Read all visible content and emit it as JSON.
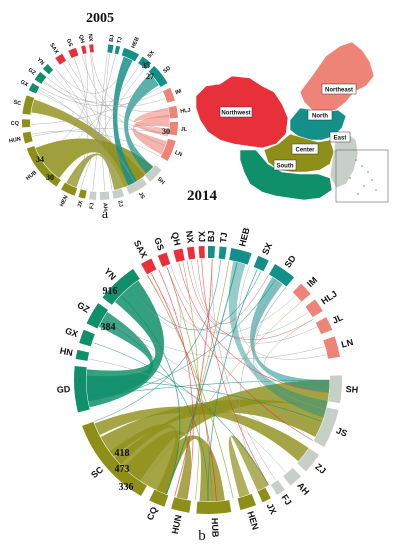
{
  "colors": {
    "northwest": "#e8303a",
    "north": "#13908a",
    "northeast": "#ee8378",
    "south": "#0f8f6a",
    "center": "#8e8f18",
    "east": "#c7cfc9",
    "link": "#9a9a9a"
  },
  "panel_a": {
    "title": "2005",
    "caption": "a",
    "nodes": [
      {
        "label": "BJ",
        "region": "north"
      },
      {
        "label": "TJ",
        "region": "north"
      },
      {
        "label": "HEB",
        "region": "north"
      },
      {
        "label": "SX",
        "region": "north"
      },
      {
        "label": "SD",
        "region": "north"
      },
      {
        "label": "IM",
        "region": "northeast"
      },
      {
        "label": "HLJ",
        "region": "northeast"
      },
      {
        "label": "JL",
        "region": "northeast"
      },
      {
        "label": "LN",
        "region": "northeast"
      },
      {
        "label": "SH",
        "region": "east"
      },
      {
        "label": "JS",
        "region": "east"
      },
      {
        "label": "ZJ",
        "region": "east"
      },
      {
        "label": "AH",
        "region": "east"
      },
      {
        "label": "FJ",
        "region": "east"
      },
      {
        "label": "JX",
        "region": "center"
      },
      {
        "label": "HEN",
        "region": "center"
      },
      {
        "label": "HUB",
        "region": "center"
      },
      {
        "label": "HUN",
        "region": "center"
      },
      {
        "label": "CQ",
        "region": "center"
      },
      {
        "label": "SC",
        "region": "center"
      },
      {
        "label": "GX",
        "region": "south"
      },
      {
        "label": "GZ",
        "region": "south"
      },
      {
        "label": "YN",
        "region": "south"
      },
      {
        "label": "SAX",
        "region": "northwest"
      },
      {
        "label": "GS",
        "region": "northwest"
      },
      {
        "label": "QH",
        "region": "northwest"
      },
      {
        "label": "NX",
        "region": "northwest"
      }
    ],
    "values": [
      "35",
      "27",
      "30",
      "34",
      "30"
    ]
  },
  "map": {
    "regions": [
      "Northwest",
      "North",
      "Northeast",
      "Center",
      "East",
      "South"
    ]
  },
  "panel_b": {
    "title": "2014",
    "caption": "b",
    "nodes": [
      {
        "label": "BJ",
        "region": "north"
      },
      {
        "label": "TJ",
        "region": "north"
      },
      {
        "label": "HEB",
        "region": "north"
      },
      {
        "label": "SX",
        "region": "north"
      },
      {
        "label": "SD",
        "region": "north"
      },
      {
        "label": "IM",
        "region": "northeast"
      },
      {
        "label": "HLJ",
        "region": "northeast"
      },
      {
        "label": "JL",
        "region": "northeast"
      },
      {
        "label": "LN",
        "region": "northeast"
      },
      {
        "label": "SH",
        "region": "east"
      },
      {
        "label": "JS",
        "region": "east"
      },
      {
        "label": "ZJ",
        "region": "east"
      },
      {
        "label": "AH",
        "region": "east"
      },
      {
        "label": "FJ",
        "region": "east"
      },
      {
        "label": "JX",
        "region": "center"
      },
      {
        "label": "HEN",
        "region": "center"
      },
      {
        "label": "HUB",
        "region": "center"
      },
      {
        "label": "HUN",
        "region": "center"
      },
      {
        "label": "CQ",
        "region": "center"
      },
      {
        "label": "SC",
        "region": "center"
      },
      {
        "label": "GD",
        "region": "south"
      },
      {
        "label": "HN",
        "region": "south"
      },
      {
        "label": "GX",
        "region": "south"
      },
      {
        "label": "GZ",
        "region": "south"
      },
      {
        "label": "YN",
        "region": "south"
      },
      {
        "label": "SAX",
        "region": "northwest"
      },
      {
        "label": "GS",
        "region": "northwest"
      },
      {
        "label": "QH",
        "region": "northwest"
      },
      {
        "label": "NX",
        "region": "northwest"
      },
      {
        "label": "XJ",
        "region": "northwest"
      }
    ],
    "values": [
      "916",
      "384",
      "418",
      "473",
      "336"
    ]
  }
}
